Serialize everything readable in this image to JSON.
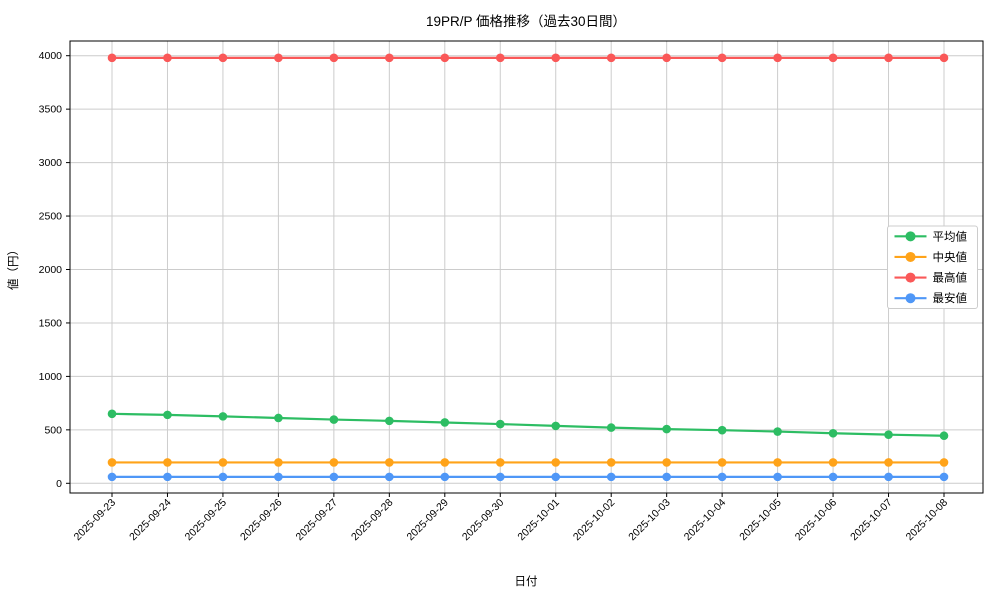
{
  "figure": {
    "background": "#ffffff",
    "grid_color": "#cccccc",
    "spine_color": "#000000",
    "legend_border_color": "#cccccc",
    "legend_background": "#ffffff"
  },
  "chart_data": {
    "type": "line",
    "title": "19PR/P 価格推移（過去30日間）",
    "xlabel": "日付",
    "ylabel": "値（円）",
    "x": [
      "2025-09-23",
      "2025-09-24",
      "2025-09-25",
      "2025-09-26",
      "2025-09-27",
      "2025-09-28",
      "2025-09-29",
      "2025-09-30",
      "2025-10-01",
      "2025-10-02",
      "2025-10-03",
      "2025-10-04",
      "2025-10-05",
      "2025-10-06",
      "2025-10-07",
      "2025-10-08"
    ],
    "series": [
      {
        "id": "average",
        "name": "平均値",
        "color": "#2dbd63",
        "values": [
          650,
          640,
          626,
          611,
          596,
          584,
          569,
          554,
          537,
          521,
          507,
          497,
          484,
          468,
          455,
          445
        ]
      },
      {
        "id": "median",
        "name": "中央値",
        "color": "#ffa319",
        "values": [
          195,
          195,
          195,
          195,
          195,
          195,
          195,
          195,
          195,
          195,
          195,
          195,
          195,
          195,
          195,
          195
        ]
      },
      {
        "id": "max",
        "name": "最高値",
        "color": "#fa5858",
        "values": [
          3980,
          3980,
          3980,
          3980,
          3980,
          3980,
          3980,
          3980,
          3980,
          3980,
          3980,
          3980,
          3980,
          3980,
          3980,
          3980
        ]
      },
      {
        "id": "min",
        "name": "最安値",
        "color": "#4f97f7",
        "values": [
          60,
          60,
          60,
          60,
          60,
          60,
          60,
          60,
          60,
          60,
          60,
          60,
          60,
          60,
          60,
          60
        ]
      }
    ],
    "ylim": [
      0,
      4000
    ],
    "yticks": [
      0,
      500,
      1000,
      1500,
      2000,
      2500,
      3000,
      3500,
      4000
    ],
    "grid": true,
    "legend_position": "center-right",
    "legend_entries": [
      "平均値",
      "中央値",
      "最高値",
      "最安値"
    ]
  }
}
